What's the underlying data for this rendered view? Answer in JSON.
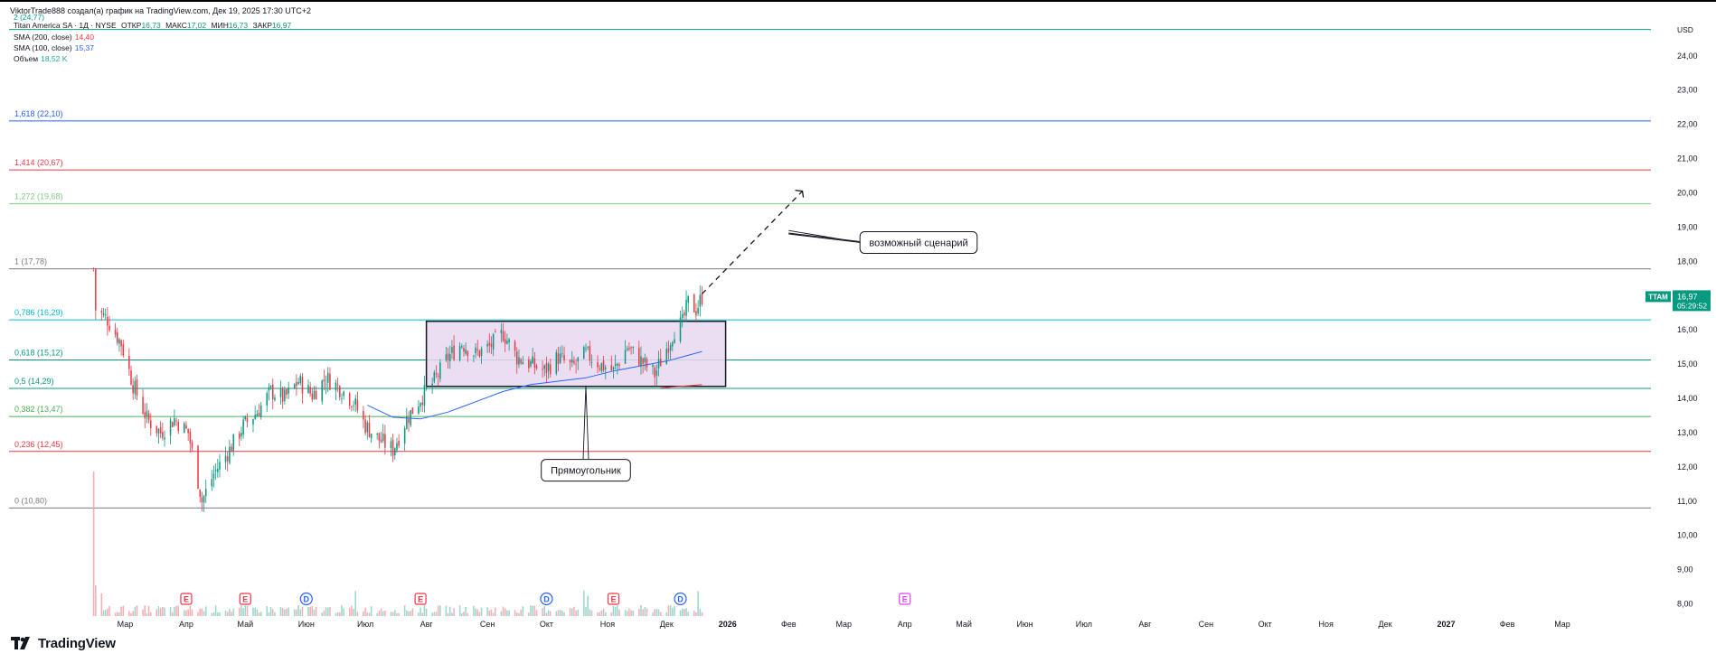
{
  "header": {
    "author_line": "ViktorTrade888 создал(а) график на TradingView.com, Дек 19, 2025 17:30 UTC+2",
    "symbol_line": {
      "name": "Titan America SA · 1Д · NYSE",
      "o_label": "ОТКР",
      "o": "16,73",
      "h_label": "МАКС",
      "h": "17,02",
      "l_label": "МИН",
      "l": "16,73",
      "c_label": "ЗАКР",
      "c": "16,97"
    },
    "top_fib_label": "2 (24,77)",
    "indicators": [
      {
        "label": "SMA (200, close)",
        "value": "14,40",
        "color": "#f23645"
      },
      {
        "label": "SMA (100, close)",
        "value": "15,37",
        "color": "#2962ff"
      },
      {
        "label": "Объем",
        "value": "18,52 K",
        "color": "#26a69a"
      }
    ]
  },
  "logo": {
    "text": "TradingView",
    "icon": "tradingview-logo-icon"
  },
  "price_tag": {
    "symbol": "TTAM",
    "price": "16,97",
    "countdown": "05:29:52",
    "color": "#089981"
  },
  "chart_data": {
    "type": "candlestick",
    "title": "",
    "currency": "USD",
    "ylim": [
      7.75,
      25.05
    ],
    "y_ticks": [
      {
        "value": 8,
        "label": "8,00"
      },
      {
        "value": 9,
        "label": "9,00"
      },
      {
        "value": 10,
        "label": "10,00"
      },
      {
        "value": 11,
        "label": "11,00"
      },
      {
        "value": 12,
        "label": "12,00"
      },
      {
        "value": 13,
        "label": "13,00"
      },
      {
        "value": 14,
        "label": "14,00"
      },
      {
        "value": 15,
        "label": "15,00"
      },
      {
        "value": 16,
        "label": "16,00"
      },
      {
        "value": 17,
        "label": "17,00"
      },
      {
        "value": 18,
        "label": "18,00"
      },
      {
        "value": 19,
        "label": "19,00"
      },
      {
        "value": 20,
        "label": "20,00"
      },
      {
        "value": 21,
        "label": "21,00"
      },
      {
        "value": 22,
        "label": "22,00"
      },
      {
        "value": 23,
        "label": "23,00"
      },
      {
        "value": 24,
        "label": "24,00"
      }
    ],
    "time_axis": {
      "start": "2025-01-01",
      "end": "2027-04-15",
      "labels": [
        {
          "date": "2025-03-01",
          "text": "Мар",
          "bold": false
        },
        {
          "date": "2025-04-01",
          "text": "Апр",
          "bold": false
        },
        {
          "date": "2025-05-01",
          "text": "Май",
          "bold": false
        },
        {
          "date": "2025-06-01",
          "text": "Июн",
          "bold": false
        },
        {
          "date": "2025-07-01",
          "text": "Июл",
          "bold": false
        },
        {
          "date": "2025-08-01",
          "text": "Авг",
          "bold": false
        },
        {
          "date": "2025-09-01",
          "text": "Сен",
          "bold": false
        },
        {
          "date": "2025-10-01",
          "text": "Окт",
          "bold": false
        },
        {
          "date": "2025-11-01",
          "text": "Ноя",
          "bold": false
        },
        {
          "date": "2025-12-01",
          "text": "Дек",
          "bold": false
        },
        {
          "date": "2026-01-01",
          "text": "2026",
          "bold": true
        },
        {
          "date": "2026-02-01",
          "text": "Фев",
          "bold": false
        },
        {
          "date": "2026-03-01",
          "text": "Мар",
          "bold": false
        },
        {
          "date": "2026-04-01",
          "text": "Апр",
          "bold": false
        },
        {
          "date": "2026-05-01",
          "text": "Май",
          "bold": false
        },
        {
          "date": "2026-06-01",
          "text": "Июн",
          "bold": false
        },
        {
          "date": "2026-07-01",
          "text": "Июл",
          "bold": false
        },
        {
          "date": "2026-08-01",
          "text": "Авг",
          "bold": false
        },
        {
          "date": "2026-09-01",
          "text": "Сен",
          "bold": false
        },
        {
          "date": "2026-10-01",
          "text": "Окт",
          "bold": false
        },
        {
          "date": "2026-11-01",
          "text": "Ноя",
          "bold": false
        },
        {
          "date": "2026-12-01",
          "text": "Дек",
          "bold": false
        },
        {
          "date": "2027-01-01",
          "text": "2027",
          "bold": true
        },
        {
          "date": "2027-02-01",
          "text": "Фев",
          "bold": false
        },
        {
          "date": "2027-03-01",
          "text": "Мар",
          "bold": false
        }
      ]
    },
    "price_path": [
      [
        "2025-02-13",
        17.78
      ],
      [
        "2025-02-14",
        16.6
      ],
      [
        "2025-02-20",
        16.3
      ],
      [
        "2025-02-27",
        15.6
      ],
      [
        "2025-03-05",
        14.4
      ],
      [
        "2025-03-12",
        13.4
      ],
      [
        "2025-03-19",
        13.0
      ],
      [
        "2025-03-26",
        13.4
      ],
      [
        "2025-04-02",
        13.0
      ],
      [
        "2025-04-07",
        11.6
      ],
      [
        "2025-04-09",
        11.0
      ],
      [
        "2025-04-15",
        11.8
      ],
      [
        "2025-04-23",
        12.5
      ],
      [
        "2025-04-30",
        13.2
      ],
      [
        "2025-05-07",
        13.6
      ],
      [
        "2025-05-14",
        14.2
      ],
      [
        "2025-05-21",
        14.0
      ],
      [
        "2025-05-28",
        14.5
      ],
      [
        "2025-06-04",
        14.1
      ],
      [
        "2025-06-11",
        14.6
      ],
      [
        "2025-06-18",
        14.3
      ],
      [
        "2025-06-25",
        13.9
      ],
      [
        "2025-07-01",
        13.2
      ],
      [
        "2025-07-08",
        12.8
      ],
      [
        "2025-07-15",
        12.5
      ],
      [
        "2025-07-22",
        13.4
      ],
      [
        "2025-07-29",
        14.0
      ],
      [
        "2025-08-05",
        14.5
      ],
      [
        "2025-08-12",
        15.2
      ],
      [
        "2025-08-19",
        15.6
      ],
      [
        "2025-08-26",
        15.3
      ],
      [
        "2025-09-02",
        15.5
      ],
      [
        "2025-09-09",
        15.9
      ],
      [
        "2025-09-16",
        15.2
      ],
      [
        "2025-09-23",
        15.0
      ],
      [
        "2025-09-30",
        14.8
      ],
      [
        "2025-10-07",
        15.2
      ],
      [
        "2025-10-14",
        14.9
      ],
      [
        "2025-10-21",
        15.3
      ],
      [
        "2025-10-28",
        15.0
      ],
      [
        "2025-11-04",
        14.8
      ],
      [
        "2025-11-11",
        15.5
      ],
      [
        "2025-11-18",
        15.1
      ],
      [
        "2025-11-25",
        14.7
      ],
      [
        "2025-12-02",
        15.6
      ],
      [
        "2025-12-05",
        16.0
      ],
      [
        "2025-12-09",
        16.2
      ],
      [
        "2025-12-12",
        16.8
      ],
      [
        "2025-12-16",
        16.6
      ],
      [
        "2025-12-19",
        16.97
      ]
    ],
    "sma_100": [
      [
        "2025-07-02",
        13.8
      ],
      [
        "2025-07-15",
        13.45
      ],
      [
        "2025-07-29",
        13.4
      ],
      [
        "2025-08-12",
        13.6
      ],
      [
        "2025-08-26",
        13.9
      ],
      [
        "2025-09-09",
        14.2
      ],
      [
        "2025-09-23",
        14.4
      ],
      [
        "2025-10-07",
        14.5
      ],
      [
        "2025-10-21",
        14.6
      ],
      [
        "2025-11-04",
        14.8
      ],
      [
        "2025-11-18",
        14.95
      ],
      [
        "2025-12-02",
        15.1
      ],
      [
        "2025-12-19",
        15.37
      ]
    ],
    "sma_200": [
      [
        "2025-11-28",
        14.3
      ],
      [
        "2025-12-19",
        14.4
      ]
    ],
    "fib_levels": [
      {
        "ratio": "0",
        "price": 10.8,
        "label": "0 (10,80)",
        "color": "#787b86"
      },
      {
        "ratio": "0.236",
        "price": 12.45,
        "label": "0,236 (12,45)",
        "color": "#f23645"
      },
      {
        "ratio": "0.382",
        "price": 13.47,
        "label": "0,382 (13,47)",
        "color": "#4caf50"
      },
      {
        "ratio": "0.5",
        "price": 14.29,
        "label": "0,5 (14,29)",
        "color": "#089981"
      },
      {
        "ratio": "0.618",
        "price": 15.12,
        "label": "0,618 (15,12)",
        "color": "#089981"
      },
      {
        "ratio": "0.786",
        "price": 16.29,
        "label": "0,786 (16,29)",
        "color": "#00bcd4"
      },
      {
        "ratio": "1",
        "price": 17.78,
        "label": "1 (17,78)",
        "color": "#787b86"
      },
      {
        "ratio": "1.272",
        "price": 19.68,
        "label": "1,272 (19,68)",
        "color": "#81c784"
      },
      {
        "ratio": "1.414",
        "price": 20.67,
        "label": "1,414 (20,67)",
        "color": "#f23645"
      },
      {
        "ratio": "1.618",
        "price": 22.1,
        "label": "1,618 (22,10)",
        "color": "#2962ff"
      },
      {
        "ratio": "2",
        "price": 24.77,
        "label": "2 (24,77)",
        "color": "#089981"
      }
    ],
    "rectangle": {
      "start": "2025-08-01",
      "end": "2025-12-31",
      "top": 16.25,
      "bottom": 14.35,
      "fill": "#e9d8f0",
      "stroke": "#131722"
    },
    "projection": {
      "start": [
        "2025-12-19",
        17.05
      ],
      "end": [
        "2026-02-08",
        20.05
      ]
    },
    "annotations": [
      {
        "text": "возможный сценарий",
        "box_date": "2026-04-08",
        "box_price": 18.55,
        "pointers": [
          [
            "2026-02-01",
            18.8
          ],
          [
            "2026-02-01",
            18.9
          ]
        ]
      },
      {
        "text": "Прямоугольник",
        "box_date": "2025-10-21",
        "box_price": 11.9,
        "pointers": [
          [
            "2025-10-21",
            14.35
          ]
        ]
      }
    ],
    "events": [
      {
        "date": "2025-04-01",
        "type": "E"
      },
      {
        "date": "2025-05-01",
        "type": "E"
      },
      {
        "date": "2025-06-01",
        "type": "D"
      },
      {
        "date": "2025-07-29",
        "type": "E"
      },
      {
        "date": "2025-10-01",
        "type": "D"
      },
      {
        "date": "2025-11-04",
        "type": "E"
      },
      {
        "date": "2025-12-08",
        "type": "D"
      },
      {
        "date": "2026-04-01",
        "type": "E",
        "future": true
      }
    ],
    "volume_note": "Объем"
  }
}
